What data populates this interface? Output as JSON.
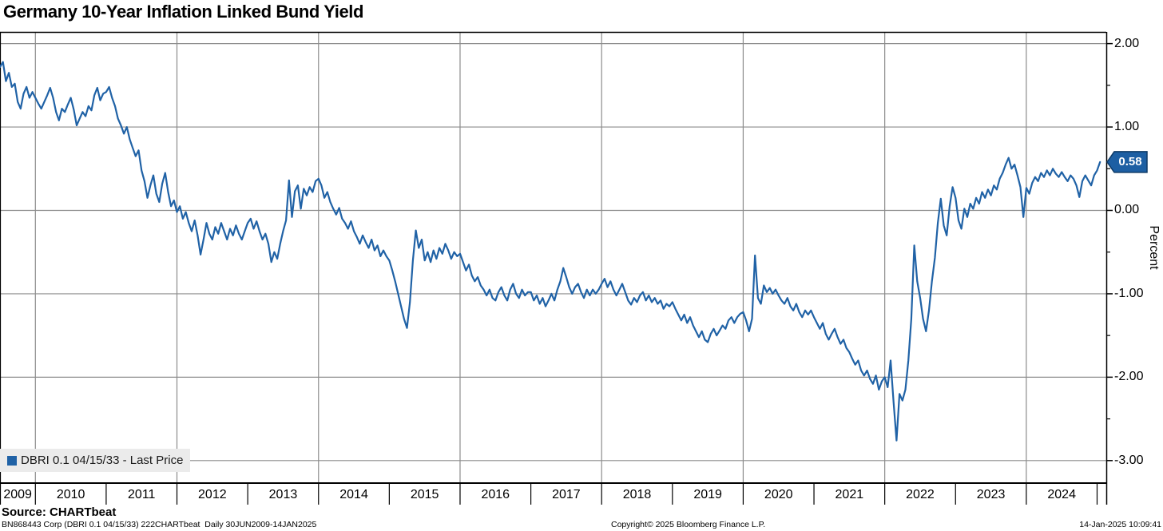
{
  "title": "Germany 10-Year Inflation Linked Bund Yield",
  "legend": {
    "label": "DBRI 0.1 04/15/33 - Last Price"
  },
  "badge": {
    "value": "0.58"
  },
  "y_axis": {
    "title": "Percent",
    "ticks": [
      {
        "value": 2.0,
        "label": "2.00"
      },
      {
        "value": 1.0,
        "label": "1.00"
      },
      {
        "value": 0.0,
        "label": "0.00"
      },
      {
        "value": -1.0,
        "label": "-1.00"
      },
      {
        "value": -2.0,
        "label": "-2.00"
      },
      {
        "value": -3.0,
        "label": "-3.00"
      }
    ],
    "minor_ticks": [
      1.5,
      0.5,
      -0.5,
      -1.5,
      -2.5
    ]
  },
  "x_axis": {
    "year_labels": [
      "2009",
      "2010",
      "2011",
      "2012",
      "2013",
      "2014",
      "2015",
      "2016",
      "2017",
      "2018",
      "2019",
      "2020",
      "2021",
      "2022",
      "2023",
      "2024"
    ],
    "tick_years": [
      2010,
      2011,
      2012,
      2013,
      2014,
      2015,
      2016,
      2017,
      2018,
      2019,
      2020,
      2021,
      2022,
      2023,
      2024,
      2025
    ],
    "grid_years": [
      2010,
      2012,
      2014,
      2016,
      2018,
      2020,
      2022,
      2024
    ]
  },
  "footer": {
    "source": "Source: CHARTbeat",
    "id_line": "BN868443 Corp (DBRI 0.1 04/15/33) 222CHARTbeat  Daily 30JUN2009-14JAN2025",
    "copyright": "Copyright© 2025 Bloomberg Finance L.P.",
    "timestamp": "14-Jan-2025 10:09:41"
  },
  "colors": {
    "line": "#2062a6",
    "badge_fill": "#1d5fa3",
    "badge_border": "#0e3a66",
    "grid": "#8c8c8c",
    "frame": "#000000",
    "legend_bg": "#ebebeb"
  },
  "chart_data": {
    "type": "line",
    "title": "Germany 10-Year Inflation Linked Bund Yield",
    "ylabel": "Percent",
    "legend_position": "bottom-left",
    "grid": true,
    "xlim": [
      2009.5,
      2025.13
    ],
    "ylim": [
      -3.27,
      2.14
    ],
    "last_price": 0.58,
    "series_name": "DBRI 0.1 04/15/33 - Last Price",
    "t_start": 2009.5,
    "t_step": 0.0416667,
    "values": [
      1.72,
      1.78,
      1.55,
      1.65,
      1.48,
      1.52,
      1.3,
      1.22,
      1.4,
      1.48,
      1.35,
      1.42,
      1.35,
      1.28,
      1.22,
      1.3,
      1.38,
      1.47,
      1.35,
      1.18,
      1.08,
      1.22,
      1.18,
      1.27,
      1.35,
      1.21,
      1.02,
      1.1,
      1.18,
      1.13,
      1.25,
      1.2,
      1.38,
      1.47,
      1.32,
      1.4,
      1.42,
      1.48,
      1.35,
      1.25,
      1.1,
      1.02,
      0.92,
      1.0,
      0.85,
      0.75,
      0.65,
      0.72,
      0.48,
      0.35,
      0.15,
      0.3,
      0.42,
      0.2,
      0.1,
      0.32,
      0.45,
      0.22,
      0.05,
      0.12,
      -0.02,
      0.05,
      -0.1,
      -0.02,
      -0.15,
      -0.25,
      -0.12,
      -0.3,
      -0.53,
      -0.35,
      -0.15,
      -0.28,
      -0.35,
      -0.2,
      -0.28,
      -0.15,
      -0.25,
      -0.35,
      -0.22,
      -0.3,
      -0.18,
      -0.28,
      -0.35,
      -0.25,
      -0.15,
      -0.1,
      -0.22,
      -0.13,
      -0.25,
      -0.35,
      -0.28,
      -0.4,
      -0.62,
      -0.5,
      -0.58,
      -0.4,
      -0.25,
      -0.12,
      0.36,
      -0.08,
      0.23,
      0.3,
      0.02,
      0.26,
      0.18,
      0.28,
      0.22,
      0.35,
      0.38,
      0.3,
      0.15,
      0.22,
      0.1,
      0.02,
      -0.05,
      0.03,
      -0.1,
      -0.15,
      -0.22,
      -0.13,
      -0.25,
      -0.32,
      -0.4,
      -0.3,
      -0.38,
      -0.45,
      -0.35,
      -0.48,
      -0.42,
      -0.55,
      -0.48,
      -0.55,
      -0.6,
      -0.72,
      -0.85,
      -1.0,
      -1.15,
      -1.3,
      -1.41,
      -1.1,
      -0.6,
      -0.24,
      -0.45,
      -0.35,
      -0.6,
      -0.5,
      -0.62,
      -0.48,
      -0.58,
      -0.45,
      -0.52,
      -0.4,
      -0.48,
      -0.58,
      -0.5,
      -0.55,
      -0.52,
      -0.62,
      -0.72,
      -0.65,
      -0.78,
      -0.85,
      -0.8,
      -0.9,
      -0.95,
      -1.02,
      -0.95,
      -1.05,
      -1.08,
      -0.98,
      -0.92,
      -1.02,
      -1.08,
      -0.95,
      -0.88,
      -1.0,
      -1.05,
      -0.95,
      -1.02,
      -0.98,
      -0.98,
      -1.08,
      -1.02,
      -1.12,
      -1.05,
      -1.15,
      -1.08,
      -1.0,
      -1.08,
      -0.95,
      -0.85,
      -0.69,
      -0.8,
      -0.92,
      -1.0,
      -0.92,
      -0.88,
      -0.98,
      -1.05,
      -0.95,
      -1.02,
      -0.95,
      -1.0,
      -0.95,
      -0.88,
      -0.82,
      -0.92,
      -0.85,
      -0.95,
      -1.02,
      -0.95,
      -0.88,
      -0.98,
      -1.08,
      -1.13,
      -1.05,
      -1.1,
      -1.02,
      -0.98,
      -1.08,
      -1.02,
      -1.1,
      -1.05,
      -1.12,
      -1.08,
      -1.18,
      -1.12,
      -1.15,
      -1.1,
      -1.18,
      -1.25,
      -1.32,
      -1.25,
      -1.35,
      -1.28,
      -1.38,
      -1.45,
      -1.52,
      -1.45,
      -1.55,
      -1.58,
      -1.48,
      -1.42,
      -1.5,
      -1.44,
      -1.38,
      -1.42,
      -1.32,
      -1.28,
      -1.35,
      -1.28,
      -1.24,
      -1.22,
      -1.32,
      -1.45,
      -1.3,
      -0.54,
      -1.05,
      -1.12,
      -0.9,
      -0.98,
      -0.93,
      -1.0,
      -0.95,
      -1.02,
      -1.08,
      -1.12,
      -1.05,
      -1.15,
      -1.2,
      -1.12,
      -1.22,
      -1.28,
      -1.2,
      -1.25,
      -1.2,
      -1.28,
      -1.35,
      -1.42,
      -1.35,
      -1.48,
      -1.55,
      -1.48,
      -1.42,
      -1.52,
      -1.6,
      -1.55,
      -1.65,
      -1.7,
      -1.78,
      -1.85,
      -1.8,
      -1.92,
      -1.98,
      -1.92,
      -2.02,
      -2.08,
      -1.98,
      -2.15,
      -2.05,
      -2.0,
      -2.12,
      -1.8,
      -2.3,
      -2.76,
      -2.2,
      -2.28,
      -2.15,
      -1.8,
      -1.3,
      -0.42,
      -0.85,
      -1.05,
      -1.3,
      -1.45,
      -1.2,
      -0.85,
      -0.57,
      -0.15,
      0.14,
      -0.18,
      -0.3,
      0.05,
      0.28,
      0.15,
      -0.12,
      -0.22,
      0.02,
      -0.08,
      0.08,
      0.02,
      0.15,
      0.08,
      0.22,
      0.15,
      0.25,
      0.18,
      0.3,
      0.25,
      0.38,
      0.45,
      0.55,
      0.63,
      0.5,
      0.55,
      0.42,
      0.28,
      -0.08,
      0.27,
      0.2,
      0.33,
      0.4,
      0.35,
      0.45,
      0.4,
      0.48,
      0.42,
      0.5,
      0.44,
      0.4,
      0.46,
      0.4,
      0.35,
      0.42,
      0.38,
      0.3,
      0.16,
      0.35,
      0.42,
      0.36,
      0.3,
      0.42,
      0.48,
      0.58
    ]
  }
}
